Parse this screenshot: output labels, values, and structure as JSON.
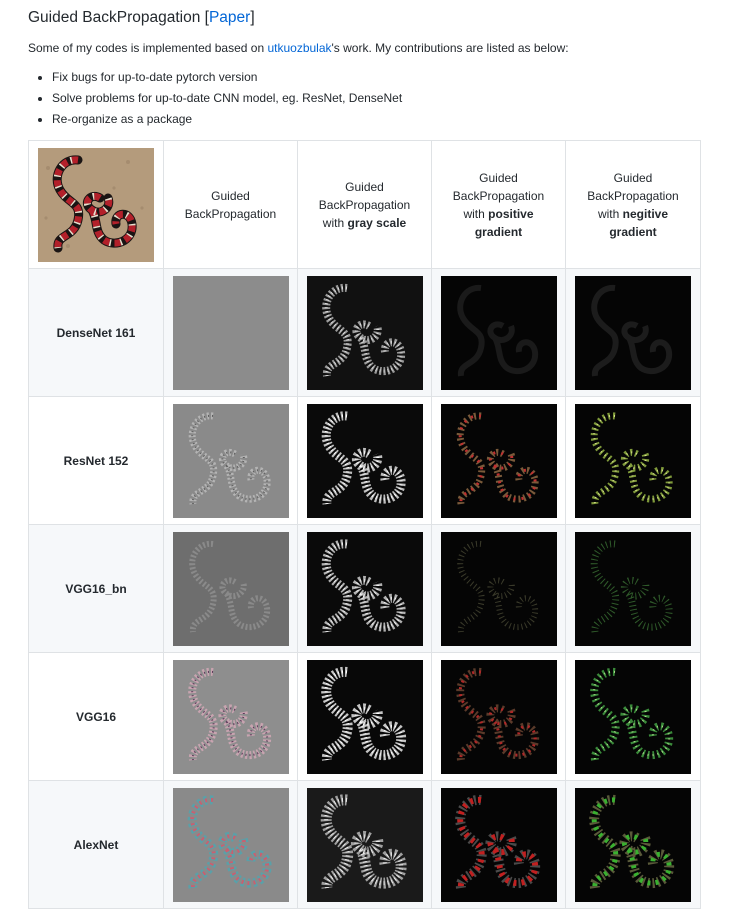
{
  "heading": {
    "title": "Guided BackPropagation",
    "bracket_open": "[",
    "link_label": "Paper",
    "bracket_close": "]"
  },
  "intro": {
    "prefix": "Some of my codes is implemented based on ",
    "link_label": "utkuozbulak",
    "suffix": "'s work. My contributions are listed as below:"
  },
  "contributions": [
    "Fix bugs for up-to-date pytorch version",
    "Solve problems for up-to-date CNN model, eg. ResNet, DenseNet",
    "Re-organize as a package"
  ],
  "table": {
    "header": {
      "col1": {
        "l1": "Guided",
        "l2": "BackPropagation"
      },
      "col2": {
        "l1": "Guided",
        "l2": "BackPropagation",
        "l3a": "with ",
        "l3b": "gray scale"
      },
      "col3": {
        "l1": "Guided",
        "l2": "BackPropagation",
        "l3a": "with ",
        "l3b": "positive",
        "l4": "gradient"
      },
      "col4": {
        "l1": "Guided",
        "l2": "BackPropagation",
        "l3a": "with ",
        "l3b": "negitive",
        "l4": "gradient"
      }
    },
    "rows": [
      {
        "model": "DenseNet 161"
      },
      {
        "model": "ResNet 152"
      },
      {
        "model": "VGG16_bn"
      },
      {
        "model": "VGG16"
      },
      {
        "model": "AlexNet"
      }
    ]
  },
  "colors": {
    "link": "#0366d6",
    "text": "#24292e",
    "border": "#dfe2e5",
    "row_alt_bg": "#f6f8fa"
  }
}
